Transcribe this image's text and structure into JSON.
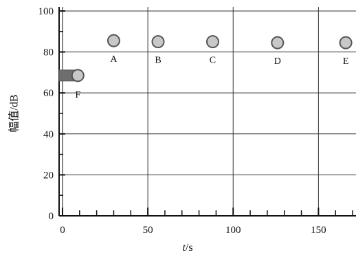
{
  "chart_data": {
    "type": "scatter",
    "xlabel_italic": "t",
    "xlabel_unit": "/s",
    "ylabel": "幅值/dB",
    "xlim": [
      -2,
      172
    ],
    "ylim": [
      0,
      102
    ],
    "x_ticks": [
      0,
      50,
      100,
      150
    ],
    "y_ticks": [
      0,
      20,
      40,
      60,
      80,
      100
    ],
    "x_tick_labels": [
      "0",
      "50",
      "100",
      "150"
    ],
    "y_tick_labels": [
      "0",
      "20",
      "40",
      "60",
      "80",
      "100"
    ],
    "grid": true,
    "points": [
      {
        "label": "A",
        "x": 30,
        "y": 85.5
      },
      {
        "label": "B",
        "x": 56,
        "y": 85
      },
      {
        "label": "C",
        "x": 88,
        "y": 85
      },
      {
        "label": "D",
        "x": 126,
        "y": 84.5
      },
      {
        "label": "E",
        "x": 166,
        "y": 84.5
      },
      {
        "label": "F",
        "x": 9,
        "y": 68.5,
        "trail_from_x": -3
      }
    ],
    "colors": {
      "grid": "#333333",
      "axis": "#111111",
      "marker_fill": "#c8c8c8",
      "marker_stroke": "#555555",
      "trail": "#6e6e6e"
    }
  }
}
